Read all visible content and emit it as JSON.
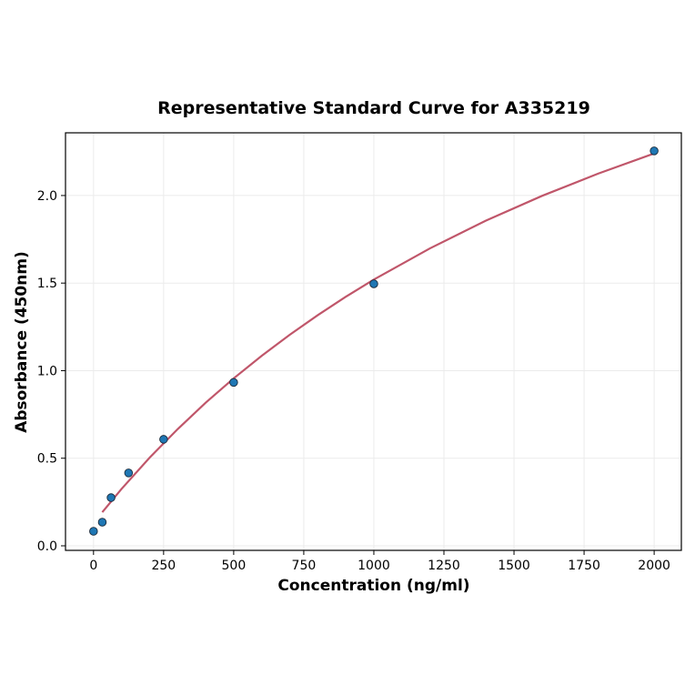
{
  "chart_data": {
    "type": "scatter",
    "title": "Representative Standard Curve for A335219",
    "xlabel": "Concentration (ng/ml)",
    "ylabel": "Absorbance (450nm)",
    "xlim": [
      -100,
      2097
    ],
    "ylim": [
      -0.026,
      2.358
    ],
    "xticks": [
      0,
      250,
      500,
      750,
      1000,
      1250,
      1500,
      1750,
      2000
    ],
    "yticks": [
      0.0,
      0.5,
      1.0,
      1.5,
      2.0
    ],
    "xtick_labels": [
      "0",
      "250",
      "500",
      "750",
      "1000",
      "1250",
      "1500",
      "1750",
      "2000"
    ],
    "ytick_labels": [
      "0.0",
      "0.5",
      "1.0",
      "1.5",
      "2.0"
    ],
    "grid": true,
    "points": {
      "x": [
        0,
        31.25,
        62.5,
        125,
        250,
        500,
        1000,
        2000
      ],
      "y": [
        0.083,
        0.135,
        0.275,
        0.416,
        0.608,
        0.933,
        1.496,
        2.255
      ],
      "color": "#1f77b4"
    },
    "fit": {
      "x": [
        31.25,
        100,
        200,
        300,
        400,
        500,
        600,
        700,
        800,
        900,
        1000,
        1200,
        1400,
        1600,
        1800,
        2000
      ],
      "y": [
        0.192,
        0.325,
        0.503,
        0.666,
        0.817,
        0.956,
        1.085,
        1.205,
        1.317,
        1.422,
        1.52,
        1.698,
        1.857,
        1.998,
        2.125,
        2.24
      ],
      "color": "#c0566a"
    }
  }
}
